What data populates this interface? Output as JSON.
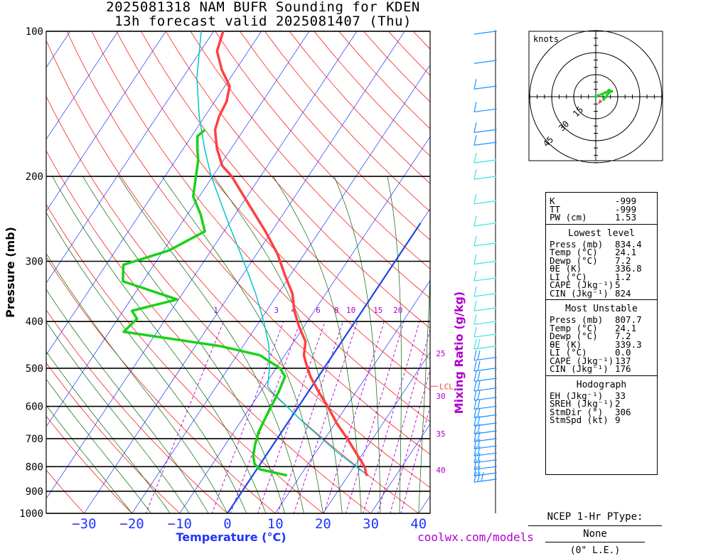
{
  "header": {
    "title_line1": "2025081318 NAM BUFR Sounding for KDEN",
    "title_line2": "13h forecast valid 2025081407 (Thu)"
  },
  "colors": {
    "temperature": "#ff4040",
    "dewpoint": "#1ad11a",
    "parcel": "#00c8c8",
    "isotherm": "#2233ff",
    "dry_adiabat": "#ff0000",
    "moist_adiabat": "#006600",
    "mixing_ratio": "#b000d0",
    "zero_isotherm": "#1e46e6",
    "wind_barbs_upper": "#1e90ff",
    "wind_barbs_mid": "#40e0e0"
  },
  "chart_data": {
    "type": "skew-t log-p sounding",
    "xlabel": "Temperature (°C)",
    "ylabel": "Pressure (mb)",
    "x_ticks": [
      -30,
      -20,
      -10,
      0,
      10,
      20,
      30,
      40
    ],
    "y_ticks": [
      100,
      200,
      300,
      400,
      500,
      600,
      700,
      800,
      900,
      1000
    ],
    "ylim": [
      1000,
      100
    ],
    "mixing_ratio_label": "Mixing Ratio (g/kg)",
    "mixing_ratio_lines": [
      1,
      3,
      4,
      6,
      8,
      10,
      15,
      20,
      25,
      30,
      35,
      40
    ],
    "lcl_label": "LCL",
    "lcl_pressure": 545,
    "series": [
      {
        "name": "Temperature",
        "points": [
          [
            834.4,
            24.1
          ],
          [
            830,
            23.6
          ],
          [
            800,
            22.2
          ],
          [
            760,
            19.3
          ],
          [
            700,
            14.7
          ],
          [
            650,
            10.3
          ],
          [
            600,
            6.1
          ],
          [
            560,
            2.2
          ],
          [
            520,
            -1.7
          ],
          [
            490,
            -4.3
          ],
          [
            470,
            -6.0
          ],
          [
            440,
            -7.6
          ],
          [
            410,
            -11.0
          ],
          [
            380,
            -14.2
          ],
          [
            350,
            -17.0
          ],
          [
            320,
            -21.2
          ],
          [
            290,
            -25.6
          ],
          [
            260,
            -31.3
          ],
          [
            230,
            -38.2
          ],
          [
            200,
            -46.0
          ],
          [
            190,
            -49.5
          ],
          [
            175,
            -53.0
          ],
          [
            160,
            -56.0
          ],
          [
            150,
            -57.0
          ],
          [
            140,
            -57.5
          ],
          [
            130,
            -59.0
          ],
          [
            120,
            -63.0
          ],
          [
            110,
            -66.5
          ],
          [
            100,
            -68.0
          ]
        ]
      },
      {
        "name": "Dewpoint",
        "points": [
          [
            834.4,
            7.2
          ],
          [
            810,
            0.6
          ],
          [
            790,
            -1.2
          ],
          [
            760,
            -2.6
          ],
          [
            720,
            -3.8
          ],
          [
            680,
            -4.8
          ],
          [
            620,
            -5.5
          ],
          [
            560,
            -6.2
          ],
          [
            520,
            -7.0
          ],
          [
            500,
            -9.2
          ],
          [
            470,
            -15.2
          ],
          [
            450,
            -24.7
          ],
          [
            420,
            -47.0
          ],
          [
            395,
            -46.0
          ],
          [
            380,
            -48.2
          ],
          [
            360,
            -40.3
          ],
          [
            330,
            -54.2
          ],
          [
            305,
            -56.4
          ],
          [
            285,
            -48.9
          ],
          [
            260,
            -44.0
          ],
          [
            240,
            -47.2
          ],
          [
            220,
            -51.3
          ],
          [
            200,
            -53.5
          ],
          [
            185,
            -55.3
          ],
          [
            175,
            -57.1
          ],
          [
            165,
            -58.8
          ],
          [
            160,
            -58.1
          ]
        ]
      },
      {
        "name": "Parcel",
        "points": [
          [
            834.4,
            24.1
          ],
          [
            750,
            14.8
          ],
          [
            650,
            3.5
          ],
          [
            560,
            -7.6
          ],
          [
            545,
            -9.3
          ],
          [
            500,
            -11.4
          ],
          [
            450,
            -14.6
          ],
          [
            400,
            -19.1
          ],
          [
            350,
            -24.7
          ],
          [
            300,
            -31.7
          ],
          [
            250,
            -40.2
          ],
          [
            200,
            -50.3
          ],
          [
            175,
            -55.6
          ],
          [
            150,
            -61.2
          ],
          [
            125,
            -67.0
          ],
          [
            100,
            -72.6
          ]
        ]
      }
    ]
  },
  "wind_profile": {
    "barbs": [
      [
        850,
        25
      ],
      [
        825,
        24
      ],
      [
        800,
        23
      ],
      [
        775,
        22
      ],
      [
        750,
        22
      ],
      [
        725,
        22
      ],
      [
        700,
        22
      ],
      [
        675,
        23
      ],
      [
        650,
        23
      ],
      [
        625,
        22
      ],
      [
        600,
        21
      ],
      [
        575,
        20
      ],
      [
        550,
        19
      ],
      [
        525,
        18
      ],
      [
        500,
        17
      ],
      [
        475,
        16
      ],
      [
        450,
        15
      ],
      [
        425,
        14
      ],
      [
        400,
        13
      ],
      [
        375,
        12
      ],
      [
        350,
        12
      ],
      [
        325,
        12
      ],
      [
        300,
        11
      ],
      [
        275,
        11
      ],
      [
        250,
        10
      ],
      [
        225,
        10
      ],
      [
        200,
        9
      ],
      [
        185,
        8
      ],
      [
        170,
        8
      ],
      [
        160,
        7
      ],
      [
        145,
        6
      ],
      [
        130,
        5
      ],
      [
        115,
        4
      ],
      [
        100,
        3
      ]
    ]
  },
  "hodograph": {
    "units_label": "knots",
    "ring_labels": [
      "15",
      "30",
      "45"
    ],
    "points": [
      [
        -2,
        6
      ],
      [
        0,
        8
      ],
      [
        2,
        9
      ],
      [
        3,
        10
      ],
      [
        4,
        11
      ],
      [
        4,
        12
      ],
      [
        5,
        10
      ],
      [
        3,
        7
      ],
      [
        2,
        5
      ],
      [
        1,
        2
      ],
      [
        0,
        0
      ]
    ],
    "storm_motion": [
      0.4,
      -1.3
    ]
  },
  "indices": {
    "k": {
      "label": "K",
      "value": "-999"
    },
    "tt": {
      "label": "TT",
      "value": "-999"
    },
    "pw": {
      "label": "PW (cm)",
      "value": "1.53"
    },
    "lowest_level": {
      "title": "Lowest level",
      "rows": [
        {
          "label": "Press (mb)",
          "value": "834.4"
        },
        {
          "label": "Temp (°C)",
          "value": "24.1"
        },
        {
          "label": "Dewp (°C)",
          "value": "7.2"
        },
        {
          "label": "θE (K)",
          "value": "336.8"
        },
        {
          "label": "LI (°C)",
          "value": "1.2"
        },
        {
          "label": "CAPE (Jkg⁻¹)",
          "value": "5"
        },
        {
          "label": "CIN (Jkg⁻¹)",
          "value": "824"
        }
      ]
    },
    "most_unstable": {
      "title": "Most Unstable",
      "rows": [
        {
          "label": "Press (mb)",
          "value": "807.7"
        },
        {
          "label": "Temp (°C)",
          "value": "24.1"
        },
        {
          "label": "Dewp (°C)",
          "value": "7.2"
        },
        {
          "label": "θE (K)",
          "value": "339.3"
        },
        {
          "label": "LI (°C)",
          "value": "0.0"
        },
        {
          "label": "CAPE (Jkg⁻¹)",
          "value": "137"
        },
        {
          "label": "CIN (Jkg⁻¹)",
          "value": "176"
        }
      ]
    },
    "hodograph_box": {
      "title": "Hodograph",
      "rows": [
        {
          "label": "EH (Jkg⁻¹)",
          "value": "33"
        },
        {
          "label": "SREH (Jkg⁻¹)",
          "value": "2"
        },
        {
          "label": "StmDir (°)",
          "value": "306"
        },
        {
          "label": "StmSpd (kt)",
          "value": "9"
        }
      ]
    }
  },
  "ptype": {
    "title": "NCEP 1-Hr PType:",
    "value": "None",
    "note": "(0\" L.E.)"
  },
  "footer": {
    "credit": "coolwx.com/models"
  }
}
